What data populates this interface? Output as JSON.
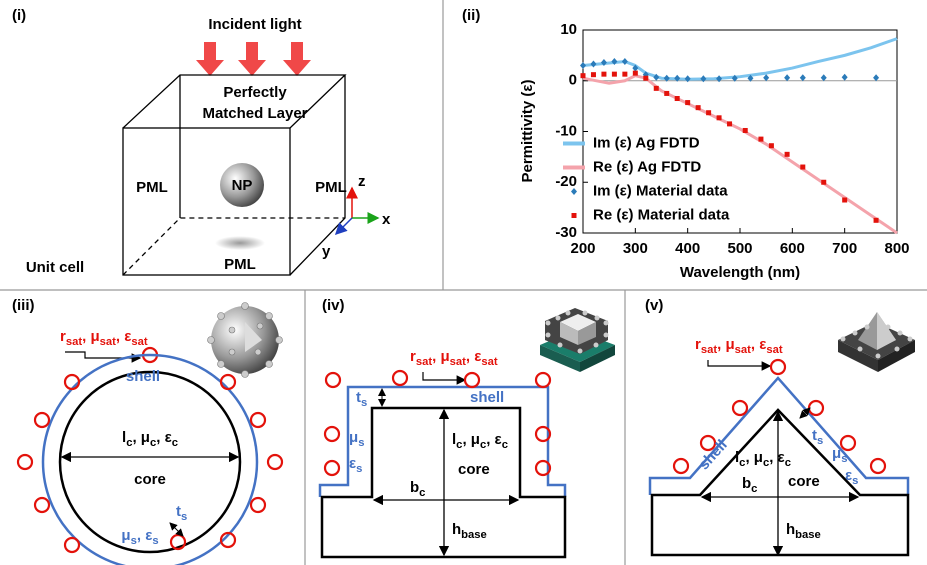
{
  "panels": {
    "i": {
      "label": "(i)",
      "incident": "Incident light",
      "pml_top_1": "Perfectly",
      "pml_top_2": "Matched Layer",
      "pml_left": "PML",
      "pml_right": "PML",
      "pml_bottom": "PML",
      "np": "NP",
      "unit_cell": "Unit cell",
      "axis_z": "z",
      "axis_x": "x",
      "axis_y": "y"
    },
    "ii": {
      "label": "(ii)"
    },
    "iii": {
      "label": "(iii)",
      "sat": [
        "r",
        "sat",
        ", μ",
        "sat",
        ", ε",
        "sat"
      ],
      "shell": "shell",
      "core_params": [
        "l",
        "c",
        ", μ",
        "c",
        ", ε",
        "c"
      ],
      "core": "core",
      "shell_params": [
        "μ",
        "s",
        ", ε",
        "s"
      ],
      "thickness": [
        "t",
        "s"
      ]
    },
    "iv": {
      "label": "(iv)",
      "sat": [
        "r",
        "sat",
        ", μ",
        "sat",
        ", ε",
        "sat"
      ],
      "thickness": [
        "t",
        "s"
      ],
      "shell": "shell",
      "mu": [
        "μ",
        "s"
      ],
      "eps": [
        "ε",
        "s"
      ],
      "core_params": [
        "l",
        "c",
        ", μ",
        "c",
        ", ε",
        "c"
      ],
      "core": "core",
      "width": [
        "b",
        "c"
      ],
      "base": [
        "h",
        "base"
      ]
    },
    "v": {
      "label": "(v)",
      "sat": [
        "r",
        "sat",
        ", μ",
        "sat",
        ", ε",
        "sat"
      ],
      "shell": "shell",
      "thickness": [
        "t",
        "s"
      ],
      "mu": [
        "μ",
        "s"
      ],
      "eps": [
        "ε",
        "s"
      ],
      "core_params": [
        "l",
        "c",
        ", μ",
        "c",
        ", ε",
        "c"
      ],
      "core": "core",
      "width": [
        "b",
        "c"
      ],
      "base": [
        "h",
        "base"
      ]
    }
  },
  "chart_data": {
    "type": "line",
    "x_label": "Wavelength (nm)",
    "y_label": "Permittivity (ε)",
    "xlim": [
      200,
      800
    ],
    "xticks": [
      200,
      300,
      400,
      500,
      600,
      700,
      800
    ],
    "ylim": [
      -30,
      10
    ],
    "yticks": [
      -30,
      -20,
      -10,
      0,
      10
    ],
    "legend": "center left",
    "series": [
      {
        "name": "Im (ε) Ag FDTD",
        "color": "#7cc4ee",
        "style": "line",
        "x": [
          200,
          250,
          280,
          300,
          320,
          350,
          400,
          450,
          500,
          550,
          600,
          650,
          700,
          750,
          800
        ],
        "values": [
          3,
          3.5,
          3.8,
          3,
          1.5,
          0.5,
          0.3,
          0.4,
          0.8,
          1.5,
          2.5,
          3.8,
          5,
          6.5,
          8.3
        ]
      },
      {
        "name": "Re (ε) Ag FDTD",
        "color": "#f4a3ab",
        "style": "line",
        "x": [
          200,
          250,
          280,
          300,
          320,
          350,
          400,
          450,
          500,
          550,
          600,
          650,
          700,
          750,
          800
        ],
        "values": [
          0.5,
          -0.5,
          0,
          1,
          0.5,
          -2,
          -4.5,
          -7,
          -9.5,
          -12.5,
          -16,
          -19.5,
          -23,
          -26.5,
          -30
        ]
      },
      {
        "name": "Im (ε) Material data",
        "color": "#2b7bb9",
        "style": "diamond",
        "x": [
          200,
          220,
          240,
          260,
          280,
          300,
          320,
          340,
          360,
          380,
          400,
          430,
          460,
          490,
          520,
          550,
          590,
          620,
          660,
          700,
          760
        ],
        "values": [
          3,
          3.3,
          3.6,
          3.8,
          3.8,
          2.5,
          1.2,
          0.7,
          0.5,
          0.5,
          0.4,
          0.4,
          0.4,
          0.5,
          0.5,
          0.6,
          0.6,
          0.6,
          0.6,
          0.7,
          0.6
        ]
      },
      {
        "name": "Re (ε) Material data",
        "color": "#e3120b",
        "style": "square",
        "x": [
          200,
          220,
          240,
          260,
          280,
          300,
          320,
          340,
          360,
          380,
          400,
          420,
          440,
          460,
          480,
          510,
          540,
          560,
          590,
          620,
          660,
          700,
          760
        ],
        "values": [
          1,
          1.2,
          1.3,
          1.3,
          1.3,
          1.5,
          0.5,
          -1.5,
          -2.5,
          -3.5,
          -4.3,
          -5.3,
          -6.3,
          -7.3,
          -8.5,
          -9.8,
          -11.5,
          -12.8,
          -14.5,
          -17,
          -20,
          -23.5,
          -27.5
        ]
      }
    ]
  }
}
